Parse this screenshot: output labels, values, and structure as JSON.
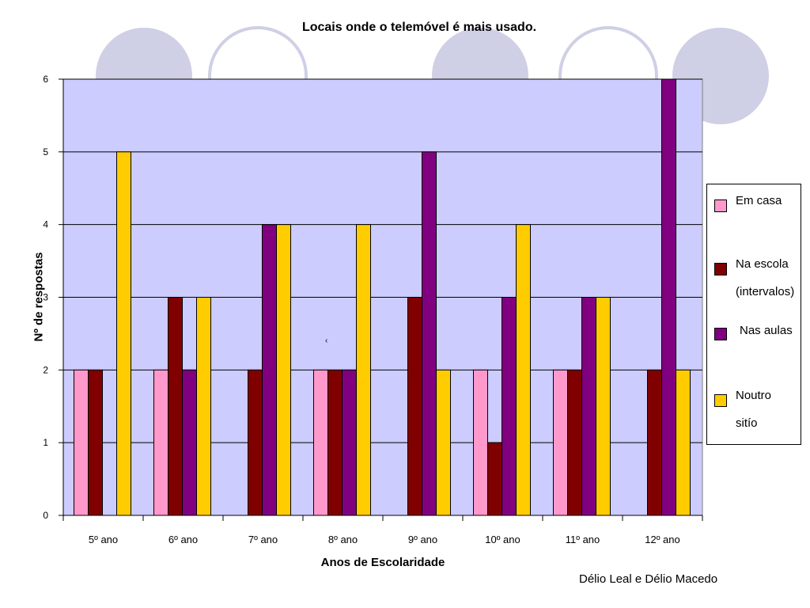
{
  "chart_data": {
    "type": "bar",
    "title": "Locais onde o telemóvel é mais usado.",
    "xlabel": "Anos de Escolaridade",
    "ylabel": "Nº de respostas",
    "ylim": [
      0,
      6
    ],
    "yticks": [
      "0",
      "1",
      "2",
      "3",
      "4",
      "5",
      "6"
    ],
    "grid": true,
    "legend_position": "right",
    "categories": [
      "5º ano",
      "6º ano",
      "7º ano",
      "8º ano",
      "9º ano",
      "10º ano",
      "11º ano",
      "12º ano"
    ],
    "series": [
      {
        "name": "Em casa",
        "name_lines": [
          "Em casa"
        ],
        "color": "#ff99cc",
        "values": [
          2,
          2,
          0,
          2,
          0,
          2,
          2,
          0
        ]
      },
      {
        "name": "Na escola (intervalos)",
        "name_lines": [
          "Na escola",
          "(intervalos)"
        ],
        "color": "#800000",
        "values": [
          2,
          3,
          2,
          2,
          3,
          1,
          2,
          2
        ]
      },
      {
        "name": "Nas aulas",
        "name_lines": [
          "Nas aulas"
        ],
        "color": "#800080",
        "values": [
          0,
          2,
          4,
          2,
          5,
          3,
          3,
          6
        ]
      },
      {
        "name": "Noutro sitío",
        "name_lines": [
          "Noutro",
          "sitío"
        ],
        "color": "#ffcc00",
        "values": [
          5,
          3,
          4,
          4,
          2,
          4,
          3,
          2
        ]
      }
    ]
  },
  "plot_background": "#ccccff",
  "decor_circle_color": "#cfcfe6",
  "stray_mark": "‹",
  "credit": "Délio Leal e Délio Macedo"
}
